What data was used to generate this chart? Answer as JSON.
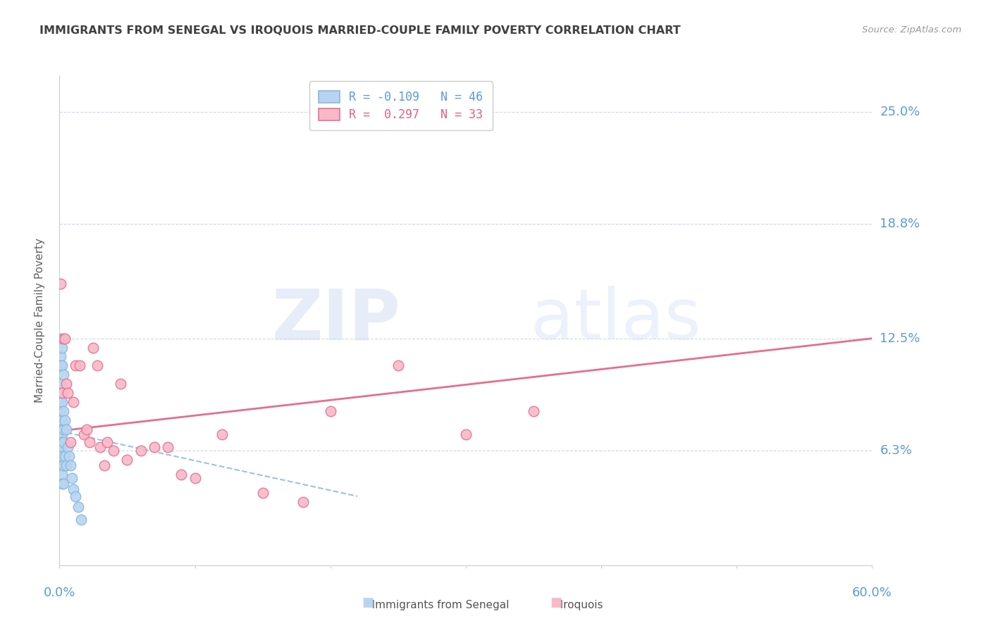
{
  "title": "IMMIGRANTS FROM SENEGAL VS IROQUOIS MARRIED-COUPLE FAMILY POVERTY CORRELATION CHART",
  "source": "Source: ZipAtlas.com",
  "ylabel": "Married-Couple Family Poverty",
  "ytick_labels": [
    "6.3%",
    "12.5%",
    "18.8%",
    "25.0%"
  ],
  "ytick_values": [
    0.063,
    0.125,
    0.188,
    0.25
  ],
  "xlim": [
    0.0,
    0.6
  ],
  "ylim": [
    0.0,
    0.27
  ],
  "legend_entries": [
    {
      "label": "R = -0.109   N = 46",
      "color": "#a8c8e8"
    },
    {
      "label": "R =  0.297   N = 33",
      "color": "#f4a0b5"
    }
  ],
  "series_blue": {
    "name": "Immigrants from Senegal",
    "color": "#b8d4f0",
    "edge_color": "#88b8e0",
    "R": -0.109,
    "N": 46,
    "x": [
      0.001,
      0.001,
      0.001,
      0.001,
      0.001,
      0.001,
      0.001,
      0.001,
      0.001,
      0.001,
      0.001,
      0.001,
      0.001,
      0.001,
      0.001,
      0.001,
      0.002,
      0.002,
      0.002,
      0.002,
      0.002,
      0.002,
      0.002,
      0.002,
      0.002,
      0.002,
      0.002,
      0.002,
      0.003,
      0.003,
      0.003,
      0.003,
      0.003,
      0.003,
      0.004,
      0.004,
      0.005,
      0.005,
      0.006,
      0.007,
      0.008,
      0.009,
      0.01,
      0.012,
      0.014,
      0.016
    ],
    "y": [
      0.125,
      0.115,
      0.11,
      0.1,
      0.095,
      0.09,
      0.085,
      0.08,
      0.075,
      0.072,
      0.07,
      0.068,
      0.065,
      0.063,
      0.06,
      0.058,
      0.12,
      0.11,
      0.09,
      0.08,
      0.075,
      0.072,
      0.068,
      0.065,
      0.06,
      0.055,
      0.05,
      0.045,
      0.105,
      0.085,
      0.075,
      0.068,
      0.055,
      0.045,
      0.08,
      0.06,
      0.075,
      0.055,
      0.065,
      0.06,
      0.055,
      0.048,
      0.042,
      0.038,
      0.032,
      0.025
    ],
    "trend_x_start": 0.0,
    "trend_x_end": 0.22,
    "trend_y_start": 0.074,
    "trend_y_end": 0.038
  },
  "series_pink": {
    "name": "Iroquois",
    "color": "#f8b8c8",
    "edge_color": "#e87090",
    "R": 0.297,
    "N": 33,
    "x": [
      0.001,
      0.002,
      0.003,
      0.004,
      0.005,
      0.006,
      0.008,
      0.01,
      0.012,
      0.015,
      0.018,
      0.02,
      0.022,
      0.025,
      0.028,
      0.03,
      0.033,
      0.035,
      0.04,
      0.045,
      0.05,
      0.06,
      0.07,
      0.08,
      0.09,
      0.1,
      0.12,
      0.15,
      0.18,
      0.2,
      0.25,
      0.3,
      0.35
    ],
    "y": [
      0.155,
      0.095,
      0.125,
      0.125,
      0.1,
      0.095,
      0.068,
      0.09,
      0.11,
      0.11,
      0.072,
      0.075,
      0.068,
      0.12,
      0.11,
      0.065,
      0.055,
      0.068,
      0.063,
      0.1,
      0.058,
      0.063,
      0.065,
      0.065,
      0.05,
      0.048,
      0.072,
      0.04,
      0.035,
      0.085,
      0.11,
      0.072,
      0.085
    ],
    "trend_x_start": 0.0,
    "trend_x_end": 0.6,
    "trend_y_start": 0.074,
    "trend_y_end": 0.125
  },
  "watermark_zip": "ZIP",
  "watermark_atlas": "atlas",
  "background_color": "#ffffff",
  "grid_color": "#d0d8e8",
  "title_color": "#404040",
  "tick_label_color": "#5b9bd5",
  "ylabel_color": "#606060"
}
